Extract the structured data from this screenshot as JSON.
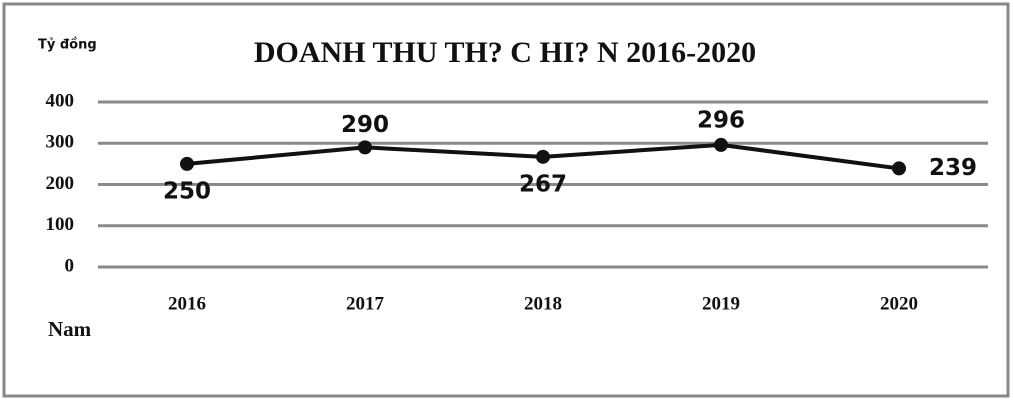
{
  "chart_data": {
    "type": "line",
    "title": "DOANH THU TH? C HI? N 2016-2020",
    "y_label": "Tỷ đồng",
    "x_label": "Nam",
    "categories": [
      "2016",
      "2017",
      "2018",
      "2019",
      "2020"
    ],
    "values": [
      250,
      290,
      267,
      296,
      239
    ],
    "color": "#111111",
    "ylim": [
      0,
      400
    ],
    "yticks": [
      0,
      100,
      200,
      300,
      400
    ],
    "grid": true
  }
}
